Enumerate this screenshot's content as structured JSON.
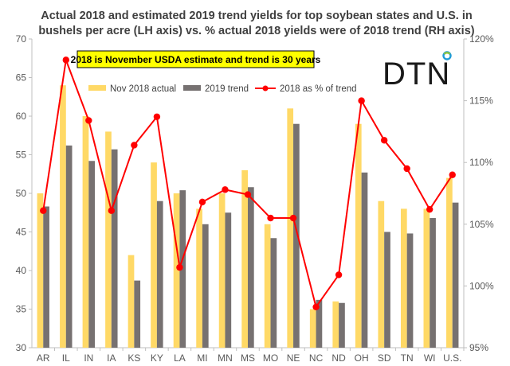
{
  "chart_data": {
    "type": "bar",
    "title_lines": [
      "Actual 2018 and estimated 2019 trend yields for top soybean states and U.S. in",
      "bushels per acre (LH axis) vs. % actual 2018 yields were of 2018 trend (RH axis)"
    ],
    "note": "2018 is November USDA estimate and trend is 30 years",
    "logo": "DTN",
    "categories": [
      "AR",
      "IL",
      "IN",
      "IA",
      "KS",
      "KY",
      "LA",
      "MI",
      "MN",
      "MS",
      "MO",
      "NE",
      "NC",
      "ND",
      "OH",
      "SD",
      "TN",
      "WI",
      "U.S."
    ],
    "series": [
      {
        "name": "Nov 2018 actual",
        "type": "bar",
        "axis": "left",
        "color": "#FFD966",
        "values": [
          50,
          64,
          60,
          58,
          42,
          54,
          50,
          48,
          50,
          53,
          46,
          61,
          35,
          36,
          59,
          49,
          48,
          48,
          52
        ]
      },
      {
        "name": "2019 trend",
        "type": "bar",
        "axis": "left",
        "color": "#767171",
        "values": [
          48.3,
          56.2,
          54.2,
          55.7,
          38.7,
          49,
          50.4,
          46,
          47.5,
          50.8,
          44.2,
          59,
          36.2,
          35.8,
          52.7,
          45,
          44.8,
          46.8,
          48.8
        ]
      },
      {
        "name": "2018 as % of trend",
        "type": "line",
        "axis": "right",
        "color": "#FF0000",
        "values": [
          106.1,
          118.3,
          113.4,
          106.1,
          111.4,
          113.7,
          101.5,
          106.8,
          107.8,
          107.4,
          105.5,
          105.5,
          98.3,
          100.9,
          115,
          111.8,
          109.5,
          106.2,
          109
        ]
      }
    ],
    "y_left": {
      "min": 30,
      "max": 70,
      "step": 5,
      "ticks": [
        "30",
        "35",
        "40",
        "45",
        "50",
        "55",
        "60",
        "65",
        "70"
      ]
    },
    "y_right": {
      "min": 95,
      "max": 120,
      "step": 5,
      "ticks": [
        "95%",
        "100%",
        "105%",
        "110%",
        "115%",
        "120%"
      ]
    },
    "grid": false,
    "legend_position": "top"
  }
}
